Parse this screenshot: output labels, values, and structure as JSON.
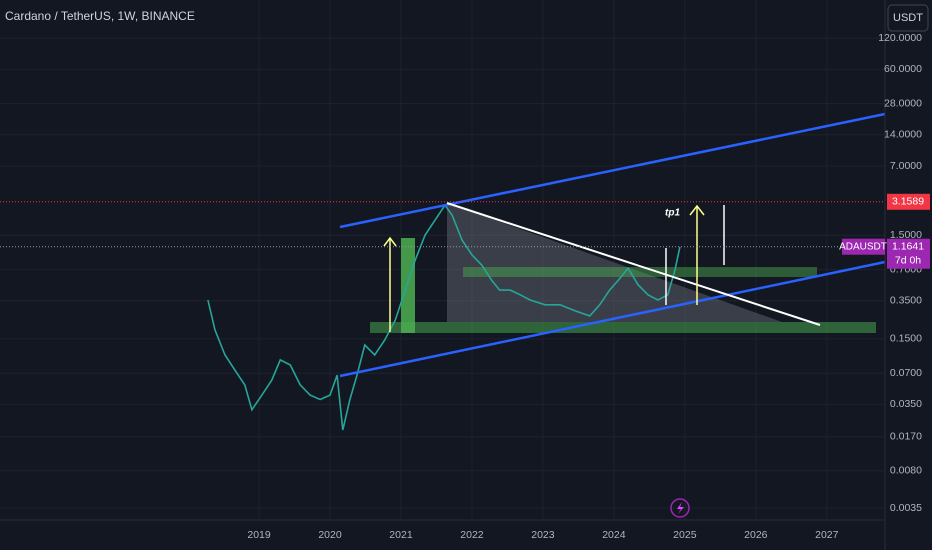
{
  "chart_data": {
    "type": "line",
    "title": "Cardano / TetherUS, 1W, BINANCE",
    "currency": "USDT",
    "symbol": "ADAUSDT",
    "last_price": 1.1641,
    "countdown": "7d 0h",
    "high_price": 3.1589,
    "annotation": "tp1",
    "log_scale": true,
    "grid": true,
    "color": "#26a69a",
    "x": [
      2018.28,
      2018.38,
      2018.52,
      2018.66,
      2018.8,
      2018.9,
      2019.04,
      2019.18,
      2019.3,
      2019.44,
      2019.58,
      2019.72,
      2019.86,
      2020.0,
      2020.1,
      2020.18,
      2020.28,
      2020.38,
      2020.49,
      2020.63,
      2020.77,
      2020.92,
      2021.06,
      2021.2,
      2021.34,
      2021.48,
      2021.62,
      2021.72,
      2021.86,
      2022.0,
      2022.14,
      2022.28,
      2022.39,
      2022.54,
      2022.68,
      2022.82,
      2023.03,
      2023.24,
      2023.45,
      2023.66,
      2023.8,
      2023.94,
      2024.06,
      2024.2,
      2024.34,
      2024.48,
      2024.62,
      2024.76,
      2024.86,
      2024.93
    ],
    "values": [
      0.356,
      0.183,
      0.105,
      0.075,
      0.054,
      0.031,
      0.043,
      0.06,
      0.094,
      0.084,
      0.054,
      0.043,
      0.039,
      0.043,
      0.067,
      0.0198,
      0.039,
      0.067,
      0.131,
      0.105,
      0.146,
      0.228,
      0.444,
      0.864,
      1.51,
      2.1,
      2.93,
      2.35,
      1.35,
      0.97,
      0.77,
      0.55,
      0.444,
      0.444,
      0.4,
      0.356,
      0.32,
      0.32,
      0.28,
      0.25,
      0.32,
      0.444,
      0.55,
      0.72,
      0.5,
      0.4,
      0.356,
      0.4,
      0.69,
      1.16
    ],
    "xlim": [
      2015.35,
      2027.82
    ],
    "ylim": [
      0.00268,
      280
    ],
    "xticks": [
      2019,
      2020,
      2021,
      2022,
      2023,
      2024,
      2025,
      2026,
      2027
    ],
    "yticks": [
      {
        "value": 120,
        "label": "120.0000"
      },
      {
        "value": 60,
        "label": "60.0000"
      },
      {
        "value": 28,
        "label": "28.0000"
      },
      {
        "value": 14,
        "label": "14.0000"
      },
      {
        "value": 7,
        "label": "7.0000"
      },
      {
        "value": 1.5,
        "label": "1.5000"
      },
      {
        "value": 0.7,
        "label": "0.7000"
      },
      {
        "value": 0.35,
        "label": "0.3500"
      },
      {
        "value": 0.15,
        "label": "0.1500"
      },
      {
        "value": 0.07,
        "label": "0.0700"
      },
      {
        "value": 0.035,
        "label": "0.0350"
      },
      {
        "value": 0.017,
        "label": "0.0170"
      },
      {
        "value": 0.008,
        "label": "0.0080"
      },
      {
        "value": 0.0035,
        "label": "0.0035"
      }
    ]
  }
}
